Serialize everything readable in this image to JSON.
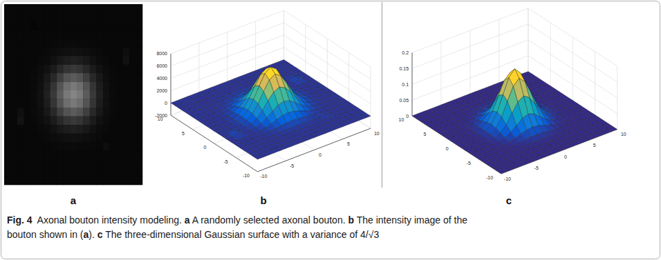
{
  "chart_data": [
    {
      "type": "image",
      "label": "a"
    },
    {
      "type": "surface",
      "label": "b",
      "x": [
        -10,
        -9,
        -8,
        -7,
        -6,
        -5,
        -4,
        -3,
        -2,
        -1,
        0,
        1,
        2,
        3,
        4,
        5,
        6,
        7,
        8,
        9,
        10
      ],
      "y": [
        -10,
        -9,
        -8,
        -7,
        -6,
        -5,
        -4,
        -3,
        -2,
        -1,
        0,
        1,
        2,
        3,
        4,
        5,
        6,
        7,
        8,
        9,
        10
      ],
      "z": [
        [
          0,
          0,
          0,
          0,
          0,
          0,
          0,
          0,
          0,
          0,
          0,
          0,
          0,
          0,
          0,
          0,
          0,
          0,
          0,
          0,
          0
        ],
        [
          0,
          0,
          0,
          0,
          0,
          0,
          0,
          0,
          0,
          0,
          0,
          0,
          0,
          0,
          0,
          0,
          0,
          0,
          0,
          0,
          0
        ],
        [
          0,
          0,
          0,
          0,
          0,
          0,
          0,
          0,
          0,
          0,
          0,
          0,
          0,
          0,
          0,
          0,
          0,
          0,
          0,
          0,
          0
        ],
        [
          0,
          0,
          0,
          0,
          0,
          0,
          0,
          0,
          0,
          40,
          40,
          40,
          0,
          0,
          0,
          0,
          0,
          0,
          0,
          0,
          0
        ],
        [
          0,
          0,
          0,
          0,
          0,
          0,
          0,
          70,
          110,
          150,
          170,
          150,
          110,
          70,
          0,
          300,
          0,
          0,
          0,
          0,
          0
        ],
        [
          0,
          0,
          0,
          0,
          0,
          40,
          100,
          210,
          350,
          470,
          520,
          470,
          350,
          210,
          100,
          40,
          0,
          0,
          0,
          0,
          0
        ],
        [
          0,
          0,
          0,
          0,
          0,
          100,
          250,
          520,
          870,
          1190,
          1320,
          1190,
          870,
          520,
          250,
          100,
          0,
          0,
          0,
          0,
          0
        ],
        [
          0,
          0,
          600,
          0,
          70,
          210,
          520,
          1080,
          1800,
          2460,
          2730,
          2460,
          1800,
          1080,
          520,
          210,
          70,
          0,
          0,
          0,
          0
        ],
        [
          0,
          0,
          400,
          0,
          110,
          350,
          870,
          1800,
          3030,
          4120,
          4570,
          4120,
          3030,
          1800,
          870,
          350,
          110,
          0,
          0,
          0,
          0
        ],
        [
          0,
          0,
          0,
          40,
          150,
          470,
          1190,
          2460,
          4120,
          5610,
          6220,
          5610,
          4120,
          2460,
          1190,
          470,
          150,
          40,
          0,
          0,
          0
        ],
        [
          0,
          0,
          0,
          40,
          170,
          520,
          1320,
          2730,
          4570,
          6220,
          6900,
          6220,
          4570,
          2730,
          1320,
          520,
          170,
          40,
          0,
          0,
          0
        ],
        [
          0,
          0,
          0,
          40,
          150,
          470,
          1190,
          2460,
          4120,
          5610,
          6220,
          5610,
          4120,
          2460,
          1190,
          470,
          150,
          40,
          0,
          0,
          0
        ],
        [
          0,
          0,
          0,
          0,
          110,
          350,
          870,
          1800,
          3030,
          4120,
          4570,
          4120,
          3030,
          1800,
          870,
          350,
          110,
          0,
          0,
          0,
          0
        ],
        [
          0,
          0,
          0,
          0,
          70,
          210,
          520,
          1080,
          1800,
          2460,
          2730,
          2460,
          1800,
          1080,
          520,
          210,
          70,
          0,
          0,
          0,
          0
        ],
        [
          0,
          0,
          0,
          0,
          0,
          100,
          250,
          520,
          870,
          1190,
          1320,
          1190,
          870,
          520,
          250,
          100,
          0,
          0,
          500,
          0,
          0
        ],
        [
          0,
          0,
          0,
          0,
          0,
          40,
          100,
          210,
          350,
          470,
          520,
          470,
          350,
          210,
          100,
          40,
          0,
          0,
          350,
          0,
          0
        ],
        [
          0,
          0,
          0,
          0,
          0,
          0,
          0,
          70,
          110,
          150,
          170,
          150,
          110,
          70,
          0,
          0,
          0,
          0,
          0,
          0,
          0
        ],
        [
          0,
          0,
          0,
          0,
          0,
          0,
          0,
          0,
          0,
          40,
          40,
          40,
          0,
          0,
          0,
          0,
          0,
          0,
          0,
          0,
          0
        ],
        [
          0,
          0,
          0,
          0,
          -150,
          0,
          0,
          0,
          0,
          0,
          0,
          0,
          0,
          0,
          0,
          0,
          0,
          0,
          0,
          0,
          0
        ],
        [
          0,
          0,
          0,
          0,
          0,
          0,
          0,
          0,
          0,
          0,
          0,
          0,
          0,
          0,
          0,
          0,
          0,
          0,
          0,
          0,
          0
        ],
        [
          0,
          0,
          0,
          0,
          0,
          0,
          0,
          0,
          0,
          0,
          0,
          0,
          0,
          0,
          0,
          0,
          0,
          0,
          0,
          0,
          0
        ]
      ],
      "xlim": [
        -10,
        10
      ],
      "ylim": [
        -10,
        10
      ],
      "zlim": [
        -2000,
        8000
      ],
      "xticks": [
        -10,
        -5,
        0,
        5,
        10
      ],
      "yticks": [
        -10,
        -5,
        0,
        5,
        10
      ],
      "zticks": [
        -2000,
        0,
        2000,
        4000,
        6000,
        8000
      ],
      "grid": true
    },
    {
      "type": "surface",
      "label": "c",
      "x": [
        -10,
        -9,
        -8,
        -7,
        -6,
        -5,
        -4,
        -3,
        -2,
        -1,
        0,
        1,
        2,
        3,
        4,
        5,
        6,
        7,
        8,
        9,
        10
      ],
      "y": [
        -10,
        -9,
        -8,
        -7,
        -6,
        -5,
        -4,
        -3,
        -2,
        -1,
        0,
        1,
        2,
        3,
        4,
        5,
        6,
        7,
        8,
        9,
        10
      ],
      "z": [
        [
          0,
          0,
          0,
          0,
          0,
          0,
          0,
          0,
          0,
          0,
          0,
          0,
          0,
          0,
          0,
          0,
          0,
          0,
          0,
          0,
          0
        ],
        [
          0,
          0,
          0,
          0,
          0,
          0,
          0,
          0,
          0,
          0,
          0,
          0,
          0,
          0,
          0,
          0,
          0,
          0,
          0,
          0,
          0
        ],
        [
          0,
          0,
          0,
          0,
          0,
          0,
          0,
          0,
          0,
          0,
          0,
          0,
          0,
          0,
          0,
          0,
          0,
          0,
          0,
          0,
          0
        ],
        [
          0,
          0,
          0,
          0,
          0,
          0,
          0,
          0,
          0,
          0,
          0,
          0,
          0,
          0,
          0,
          0,
          0,
          0,
          0,
          0,
          0
        ],
        [
          0,
          0,
          0,
          0,
          0,
          0,
          0,
          0.001,
          0.001,
          0.002,
          0.002,
          0.002,
          0.001,
          0.001,
          0,
          0,
          0,
          0,
          0,
          0,
          0
        ],
        [
          0,
          0,
          0,
          0,
          0,
          0,
          0.001,
          0.002,
          0.005,
          0.007,
          0.008,
          0.007,
          0.005,
          0.002,
          0.001,
          0,
          0,
          0,
          0,
          0,
          0
        ],
        [
          0,
          0,
          0,
          0,
          0,
          0.001,
          0.003,
          0.008,
          0.014,
          0.02,
          0.023,
          0.02,
          0.014,
          0.008,
          0.003,
          0.001,
          0,
          0,
          0,
          0,
          0
        ],
        [
          0,
          0,
          0,
          0,
          0.001,
          0.002,
          0.008,
          0.018,
          0.033,
          0.049,
          0.055,
          0.049,
          0.033,
          0.018,
          0.008,
          0.002,
          0.001,
          0,
          0,
          0,
          0
        ],
        [
          0,
          0,
          0,
          0,
          0.001,
          0.005,
          0.014,
          0.033,
          0.063,
          0.091,
          0.103,
          0.091,
          0.063,
          0.033,
          0.014,
          0.005,
          0.001,
          0,
          0,
          0,
          0
        ],
        [
          0,
          0,
          0,
          0,
          0.002,
          0.007,
          0.02,
          0.049,
          0.091,
          0.132,
          0.15,
          0.132,
          0.091,
          0.049,
          0.02,
          0.007,
          0.002,
          0,
          0,
          0,
          0
        ],
        [
          0,
          0,
          0,
          0,
          0.002,
          0.008,
          0.023,
          0.055,
          0.103,
          0.15,
          0.17,
          0.15,
          0.103,
          0.055,
          0.023,
          0.008,
          0.002,
          0,
          0,
          0,
          0
        ],
        [
          0,
          0,
          0,
          0,
          0.002,
          0.007,
          0.02,
          0.049,
          0.091,
          0.132,
          0.15,
          0.132,
          0.091,
          0.049,
          0.02,
          0.007,
          0.002,
          0,
          0,
          0,
          0
        ],
        [
          0,
          0,
          0,
          0,
          0.001,
          0.005,
          0.014,
          0.033,
          0.063,
          0.091,
          0.103,
          0.091,
          0.063,
          0.033,
          0.014,
          0.005,
          0.001,
          0,
          0,
          0,
          0
        ],
        [
          0,
          0,
          0,
          0,
          0.001,
          0.002,
          0.008,
          0.018,
          0.033,
          0.049,
          0.055,
          0.049,
          0.033,
          0.018,
          0.008,
          0.002,
          0.001,
          0,
          0,
          0,
          0
        ],
        [
          0,
          0,
          0,
          0,
          0,
          0.001,
          0.003,
          0.008,
          0.014,
          0.02,
          0.023,
          0.02,
          0.014,
          0.008,
          0.003,
          0.001,
          0,
          0,
          0,
          0,
          0
        ],
        [
          0,
          0,
          0,
          0,
          0,
          0,
          0.001,
          0.002,
          0.005,
          0.007,
          0.008,
          0.007,
          0.005,
          0.002,
          0.001,
          0,
          0,
          0,
          0,
          0,
          0
        ],
        [
          0,
          0,
          0,
          0,
          0,
          0,
          0,
          0.001,
          0.001,
          0.002,
          0.002,
          0.002,
          0.001,
          0.001,
          0,
          0,
          0,
          0,
          0,
          0,
          0
        ],
        [
          0,
          0,
          0,
          0,
          0,
          0,
          0,
          0,
          0,
          0,
          0,
          0,
          0,
          0,
          0,
          0,
          0,
          0,
          0,
          0,
          0
        ],
        [
          0,
          0,
          0,
          0,
          0,
          0,
          0,
          0,
          0,
          0,
          0,
          0,
          0,
          0,
          0,
          0,
          0,
          0,
          0,
          0,
          0
        ],
        [
          0,
          0,
          0,
          0,
          0,
          0,
          0,
          0,
          0,
          0,
          0,
          0,
          0,
          0,
          0,
          0,
          0,
          0,
          0,
          0,
          0
        ],
        [
          0,
          0,
          0,
          0,
          0,
          0,
          0,
          0,
          0,
          0,
          0,
          0,
          0,
          0,
          0,
          0,
          0,
          0,
          0,
          0,
          0
        ]
      ],
      "xlim": [
        -10,
        10
      ],
      "ylim": [
        -10,
        10
      ],
      "zlim": [
        0,
        0.2
      ],
      "xticks": [
        -10,
        -5,
        0,
        5,
        10
      ],
      "yticks": [
        -10,
        -5,
        0,
        5,
        10
      ],
      "zticks": [
        0,
        0.05,
        0.1,
        0.15,
        0.2
      ],
      "grid": true
    }
  ],
  "caption": [
    [
      {
        "text": "Fig. 4",
        "bold": true
      },
      {
        "text": "  Axonal bouton intensity modeling. ",
        "bold": false
      },
      {
        "text": "a",
        "bold": true
      },
      {
        "text": " A randomly selected axonal bouton. ",
        "bold": false
      },
      {
        "text": "b",
        "bold": true
      },
      {
        "text": " The intensity image of the",
        "bold": false
      }
    ],
    [
      {
        "text": "bouton shown in (",
        "bold": false
      },
      {
        "text": "a",
        "bold": true
      },
      {
        "text": "). ",
        "bold": false
      },
      {
        "text": "c",
        "bold": true
      },
      {
        "text": " The three-dimensional Gaussian surface with a variance of 4/√3",
        "bold": false
      }
    ]
  ]
}
